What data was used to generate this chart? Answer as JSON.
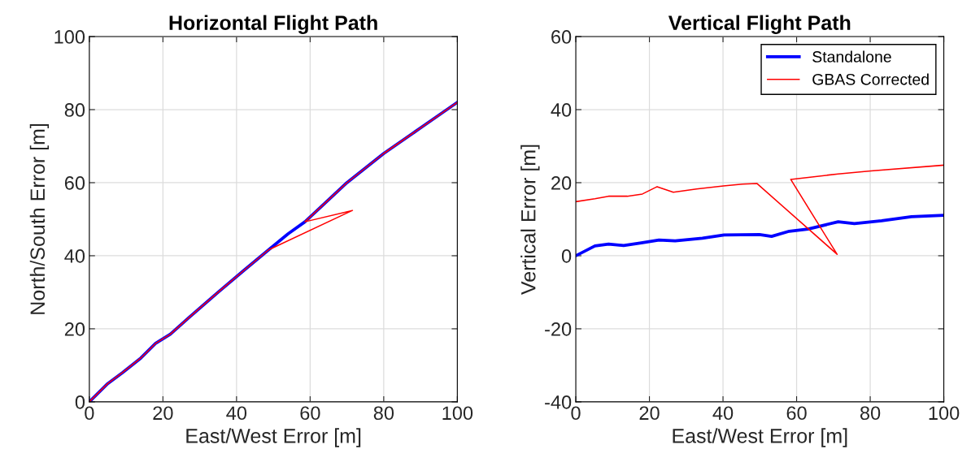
{
  "chart_data": [
    {
      "type": "line",
      "title": "Horizontal Flight Path",
      "xlabel": "East/West Error [m]",
      "ylabel": "North/South Error [m]",
      "xlim": [
        0,
        100
      ],
      "xticks": [
        0,
        20,
        40,
        60,
        80,
        100
      ],
      "ylim": [
        0,
        100
      ],
      "yticks": [
        0,
        20,
        40,
        60,
        80,
        100
      ],
      "grid": true,
      "legend": false,
      "series": [
        {
          "color": "#0000ff",
          "x": [
            0,
            5,
            9,
            14,
            18,
            22,
            27,
            35,
            42,
            48.7,
            54,
            58.6,
            70,
            80,
            90,
            100
          ],
          "values": [
            0,
            5,
            8,
            12,
            16,
            18.5,
            23,
            30,
            36,
            41.6,
            46,
            49.3,
            60,
            68,
            75,
            82
          ]
        },
        {
          "color": "#ff0000",
          "x": [
            0,
            5,
            9,
            14,
            18,
            22,
            27,
            35,
            42,
            48.7,
            71.5,
            58.6,
            70,
            80,
            90,
            100
          ],
          "values": [
            0,
            5,
            8,
            12,
            16,
            18.5,
            23,
            30,
            36,
            41.6,
            52.4,
            49.3,
            60,
            68,
            75,
            82
          ]
        }
      ]
    },
    {
      "type": "line",
      "title": "Vertical Flight Path",
      "xlabel": "East/West Error [m]",
      "ylabel": "Vertical Error [m]",
      "xlim": [
        0,
        100
      ],
      "xticks": [
        0,
        20,
        40,
        60,
        80,
        100
      ],
      "ylim": [
        -40,
        60
      ],
      "yticks": [
        -40,
        -20,
        0,
        20,
        40,
        60
      ],
      "grid": true,
      "legend": "top right",
      "series": [
        {
          "name": "Standalone",
          "color": "#0000ff",
          "x": [
            0,
            5.2,
            8.9,
            13,
            17.8,
            22.6,
            27,
            34.4,
            40.3,
            49.9,
            53.2,
            58,
            63.1,
            71.3,
            75.7,
            83.1,
            91.2,
            100
          ],
          "values": [
            0,
            2.7,
            3.2,
            2.8,
            3.5,
            4.3,
            4.1,
            4.8,
            5.7,
            5.8,
            5.3,
            6.7,
            7.3,
            9.3,
            8.8,
            9.6,
            10.7,
            11.1
          ]
        },
        {
          "name": "GBAS Corrected",
          "color": "#ff0000",
          "x": [
            0,
            5.2,
            8.9,
            14,
            18.1,
            22.1,
            26.5,
            32.8,
            40.1,
            45.3,
            49.2,
            71,
            58.4,
            71.3,
            80.2,
            100
          ],
          "values": [
            14.8,
            15.6,
            16.3,
            16.3,
            16.9,
            18.9,
            17.4,
            18.3,
            19.1,
            19.6,
            19.8,
            0.4,
            20.9,
            22.4,
            23.2,
            24.8
          ]
        }
      ]
    }
  ]
}
